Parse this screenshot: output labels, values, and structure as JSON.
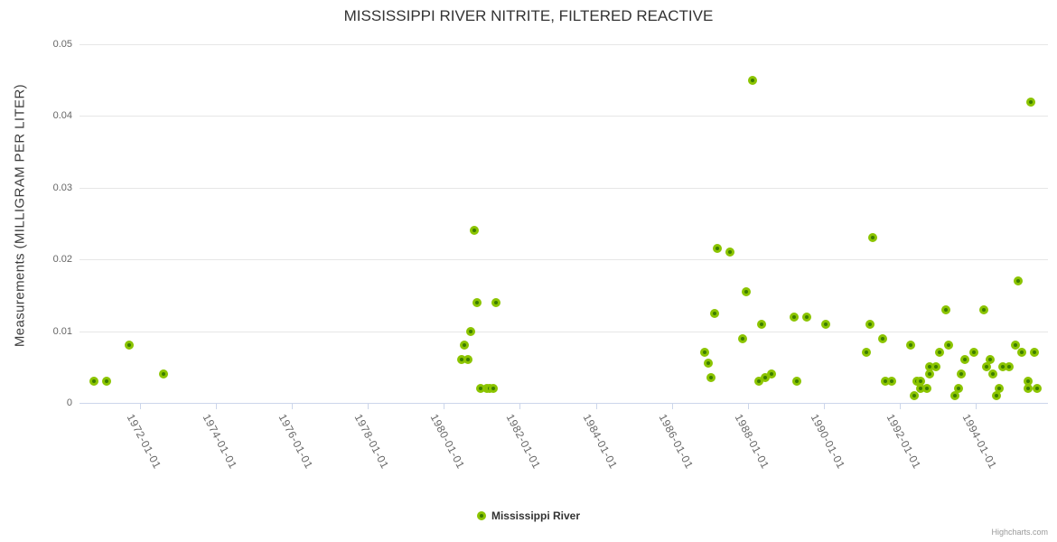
{
  "title": "MISSISSIPPI RIVER NITRITE, FILTERED REACTIVE",
  "credits": "Highcharts.com",
  "legend": {
    "label": "Mississippi River"
  },
  "colors": {
    "marker_ring": "#8bc400",
    "marker_core": "#3c7d00",
    "gridline": "#e6e6e6",
    "axis_line": "#ccd6eb",
    "title_text": "#333333",
    "axis_label_text": "#666666"
  },
  "chart_data": {
    "type": "scatter",
    "title": "MISSISSIPPI RIVER NITRITE, FILTERED REACTIVE",
    "xlabel": "",
    "ylabel": "Measurements (MILLIGRAM PER LITER)",
    "ylim": [
      0,
      0.05
    ],
    "yticks": [
      0,
      0.01,
      0.02,
      0.03,
      0.04,
      0.05
    ],
    "ytick_labels": [
      "0",
      "0.01",
      "0.02",
      "0.03",
      "0.04",
      "0.05"
    ],
    "xticks": [
      "1972-01-01",
      "1974-01-01",
      "1976-01-01",
      "1978-01-01",
      "1980-01-01",
      "1982-01-01",
      "1984-01-01",
      "1986-01-01",
      "1988-01-01",
      "1990-01-01",
      "1992-01-01",
      "1994-01-01"
    ],
    "grid": "horizontal",
    "legend_position": "bottom-center",
    "series": [
      {
        "name": "Mississippi River",
        "color": "#8bc400",
        "points": [
          [
            "1970-10",
            0.003
          ],
          [
            "1971-02",
            0.003
          ],
          [
            "1971-09",
            0.008
          ],
          [
            "1972-08",
            0.004
          ],
          [
            "1980-06",
            0.006
          ],
          [
            "1980-07",
            0.008
          ],
          [
            "1980-08",
            0.006
          ],
          [
            "1980-09",
            0.01
          ],
          [
            "1980-10",
            0.024
          ],
          [
            "1980-11",
            0.014
          ],
          [
            "1980-12",
            0.002
          ],
          [
            "1981-02",
            0.002
          ],
          [
            "1981-03",
            0.002
          ],
          [
            "1981-04",
            0.002
          ],
          [
            "1981-05",
            0.014
          ],
          [
            "1986-11",
            0.007
          ],
          [
            "1986-12",
            0.0055
          ],
          [
            "1987-01",
            0.0035
          ],
          [
            "1987-02",
            0.0125
          ],
          [
            "1987-03",
            0.0215
          ],
          [
            "1987-07",
            0.021
          ],
          [
            "1987-11",
            0.009
          ],
          [
            "1987-12",
            0.0155
          ],
          [
            "1988-02",
            0.045
          ],
          [
            "1988-04",
            0.003
          ],
          [
            "1988-05",
            0.011
          ],
          [
            "1988-06",
            0.0035
          ],
          [
            "1988-08",
            0.004
          ],
          [
            "1989-03",
            0.012
          ],
          [
            "1989-04",
            0.003
          ],
          [
            "1989-07",
            0.012
          ],
          [
            "1990-01",
            0.011
          ],
          [
            "1991-02",
            0.007
          ],
          [
            "1991-03",
            0.011
          ],
          [
            "1991-04",
            0.023
          ],
          [
            "1991-07",
            0.009
          ],
          [
            "1991-08",
            0.003
          ],
          [
            "1991-10",
            0.003
          ],
          [
            "1992-04",
            0.008
          ],
          [
            "1992-05",
            0.001
          ],
          [
            "1992-06",
            0.003
          ],
          [
            "1992-07",
            0.002
          ],
          [
            "1992-07",
            0.003
          ],
          [
            "1992-09",
            0.002
          ],
          [
            "1992-10",
            0.004
          ],
          [
            "1992-10",
            0.005
          ],
          [
            "1992-12",
            0.005
          ],
          [
            "1993-01",
            0.007
          ],
          [
            "1993-03",
            0.013
          ],
          [
            "1993-04",
            0.008
          ],
          [
            "1993-06",
            0.001
          ],
          [
            "1993-07",
            0.002
          ],
          [
            "1993-08",
            0.004
          ],
          [
            "1993-09",
            0.006
          ],
          [
            "1993-12",
            0.007
          ],
          [
            "1994-03",
            0.013
          ],
          [
            "1994-04",
            0.005
          ],
          [
            "1994-05",
            0.006
          ],
          [
            "1994-06",
            0.004
          ],
          [
            "1994-07",
            0.001
          ],
          [
            "1994-08",
            0.002
          ],
          [
            "1994-09",
            0.005
          ],
          [
            "1994-11",
            0.005
          ],
          [
            "1995-01",
            0.008
          ],
          [
            "1995-02",
            0.017
          ],
          [
            "1995-03",
            0.007
          ],
          [
            "1995-05",
            0.002
          ],
          [
            "1995-05",
            0.003
          ],
          [
            "1995-06",
            0.042
          ],
          [
            "1995-07",
            0.007
          ],
          [
            "1995-08",
            0.002
          ]
        ]
      }
    ]
  }
}
